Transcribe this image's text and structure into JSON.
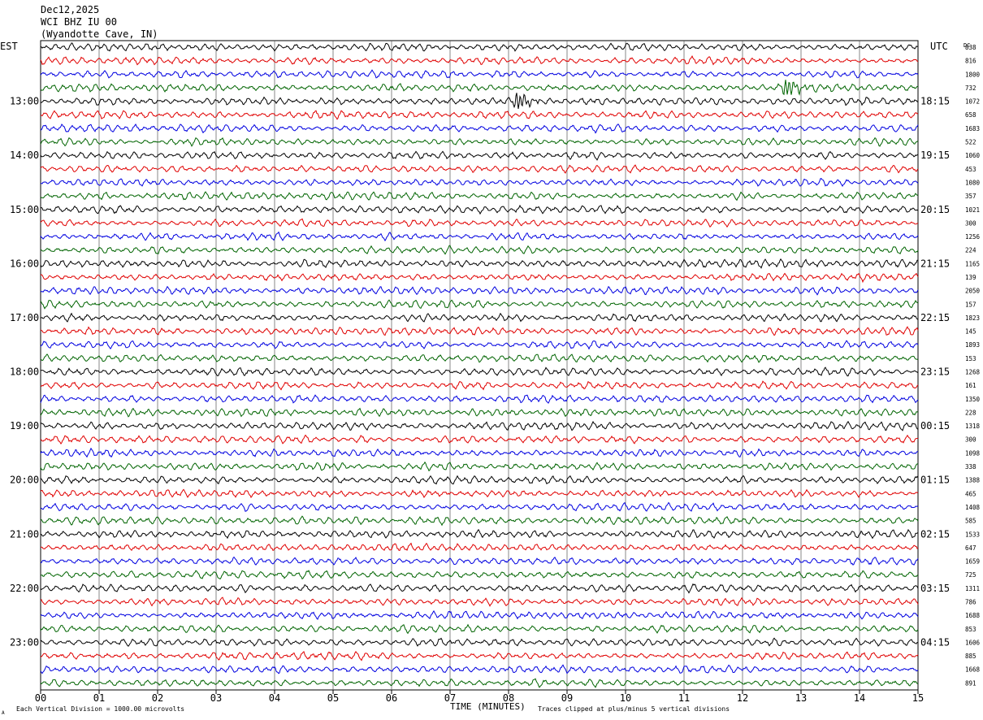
{
  "header": {
    "date": "Dec12,2025",
    "station": "WCI BHZ IU 00",
    "location": "(Wyandotte Cave, IN)",
    "left_tz": "EST",
    "right_tz": "UTC",
    "dc_label": "DC"
  },
  "footer": {
    "scale_note": "Each Vertical Division = 1000.00 microvolts",
    "xlabel": "TIME (MINUTES)",
    "clip_note": "Traces clipped at plus/minus 5 vertical divisions",
    "corner_mark": "A"
  },
  "colors": {
    "trace_cycle": [
      "#000000",
      "#e00000",
      "#0000e0",
      "#006400"
    ],
    "grid": "#000000"
  },
  "chart_data": {
    "type": "line",
    "title": "WCI BHZ IU 00",
    "xlabel": "TIME (MINUTES)",
    "xlim": [
      0,
      15
    ],
    "x_ticks": [
      "00",
      "01",
      "02",
      "03",
      "04",
      "05",
      "06",
      "07",
      "08",
      "09",
      "10",
      "11",
      "12",
      "13",
      "14",
      "15"
    ],
    "traces_per_hour": 4,
    "minutes_per_trace": 15,
    "left_hour_labels": [
      "13:00",
      "14:00",
      "15:00",
      "16:00",
      "17:00",
      "18:00",
      "19:00",
      "20:00",
      "21:00",
      "22:00",
      "23:00"
    ],
    "right_hour_labels": [
      "18:15",
      "19:15",
      "20:15",
      "21:15",
      "22:15",
      "23:15",
      "00:15",
      "01:15",
      "02:15",
      "03:15",
      "04:15"
    ],
    "dc_offsets": [
      "838",
      "816",
      "1800",
      "732",
      "1072",
      "658",
      "1683",
      "522",
      "1060",
      "453",
      "1080",
      "357",
      "1021",
      "300",
      "1256",
      "224",
      "1165",
      "139",
      "2050",
      "157",
      "1823",
      "145",
      "1893",
      "153",
      "1268",
      "161",
      "1350",
      "228",
      "1318",
      "300",
      "1098",
      "338",
      "1388",
      "465",
      "1408",
      "585",
      "1533",
      "647",
      "1659",
      "725",
      "1311",
      "786",
      "1688",
      "853",
      "1606",
      "885",
      "1668",
      "891"
    ],
    "events": [
      {
        "trace": 4,
        "minute": 8.15,
        "amplitude": "large",
        "color": "black"
      },
      {
        "trace": 3,
        "minute": 12.75,
        "amplitude": "large",
        "color": "green"
      }
    ]
  }
}
